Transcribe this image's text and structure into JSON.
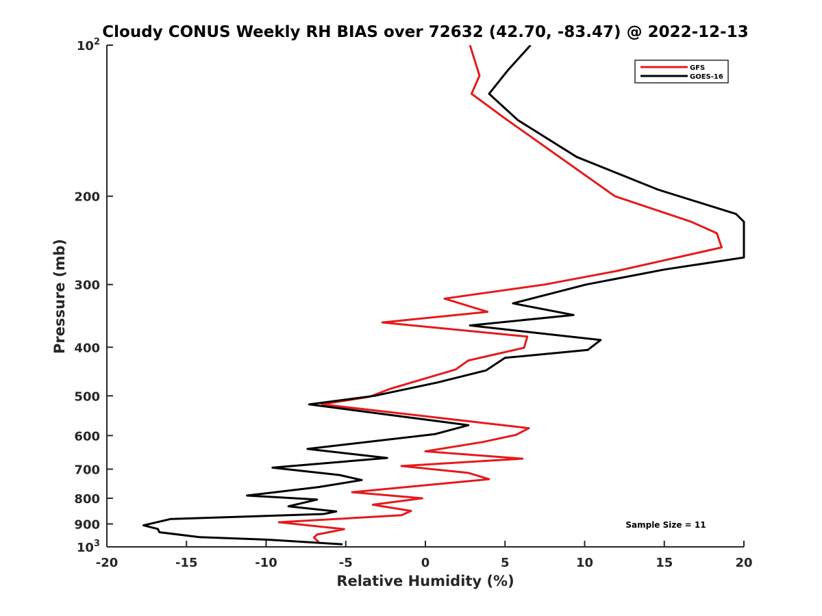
{
  "chart_data": {
    "type": "line",
    "title": "Cloudy CONUS Weekly RH BIAS over 72632 (42.70, -83.47) @ 2022-12-13",
    "xlabel": "Relative Humidity (%)",
    "ylabel": "Pressure (mb)",
    "xlim": [
      -20,
      20
    ],
    "ylim": [
      100,
      1000
    ],
    "y_scale": "log",
    "y_reversed": true,
    "grid": false,
    "legend_position": "top-right",
    "x_ticks": [
      "-20",
      "-15",
      "-10",
      "-5",
      "0",
      "5",
      "10",
      "15",
      "20"
    ],
    "y_ticks": [
      {
        "value": 100,
        "base": "10",
        "exp": "2"
      },
      {
        "value": 200,
        "label": "200"
      },
      {
        "value": 300,
        "label": "300"
      },
      {
        "value": 400,
        "label": "400"
      },
      {
        "value": 500,
        "label": "500"
      },
      {
        "value": 600,
        "label": "600"
      },
      {
        "value": 700,
        "label": "700"
      },
      {
        "value": 800,
        "label": "800"
      },
      {
        "value": 900,
        "label": "900"
      },
      {
        "value": 1000,
        "base": "10",
        "exp": "3"
      }
    ],
    "annotation": "Sample Size = 11",
    "series": [
      {
        "name": "GFS",
        "color": "#e41a1c",
        "x": [
          2.8,
          3.4,
          2.9,
          5.0,
          11.9,
          16.7,
          18.3,
          18.6,
          12.0,
          7.5,
          1.2,
          3.9,
          -2.7,
          6.4,
          6.2,
          2.7,
          1.9,
          -2.2,
          -3.5,
          -6.5,
          6.5,
          5.7,
          3.6,
          0.0,
          6.1,
          -1.5,
          2.7,
          4.0,
          0.7,
          -4.6,
          -0.2,
          -3.3,
          -0.9,
          -1.5,
          -9.2,
          -5.1,
          -6.8,
          -7.0,
          -6.7
        ],
        "y": [
          100,
          115,
          125,
          140,
          200,
          225,
          237,
          253,
          282,
          300,
          320,
          340,
          357,
          381,
          401,
          425,
          443,
          484,
          502,
          520,
          580,
          598,
          618,
          645,
          667,
          690,
          712,
          733,
          750,
          778,
          800,
          824,
          848,
          865,
          893,
          922,
          945,
          958,
          978
        ]
      },
      {
        "name": "GOES-16",
        "color": "#000000",
        "x": [
          6.6,
          5.2,
          4.0,
          5.8,
          9.5,
          14.6,
          19.5,
          20.0,
          20.0,
          15.0,
          10.1,
          5.5,
          9.3,
          2.8,
          11.0,
          10.2,
          5.0,
          3.8,
          0.8,
          -3.2,
          -7.3,
          2.7,
          0.6,
          -7.4,
          -2.4,
          -9.6,
          -5.4,
          -4.0,
          -6.7,
          -11.2,
          -6.8,
          -8.6,
          -5.6,
          -6.4,
          -16.0,
          -17.7,
          -16.8,
          -16.7,
          -14.2,
          -9.8,
          -5.2
        ],
        "y": [
          100,
          112,
          125,
          141,
          167,
          194,
          217,
          225,
          265,
          280,
          300,
          327,
          345,
          362,
          387,
          405,
          420,
          445,
          470,
          500,
          520,
          572,
          596,
          638,
          665,
          695,
          719,
          736,
          760,
          790,
          805,
          830,
          850,
          860,
          880,
          906,
          921,
          935,
          956,
          968,
          988
        ]
      }
    ]
  }
}
